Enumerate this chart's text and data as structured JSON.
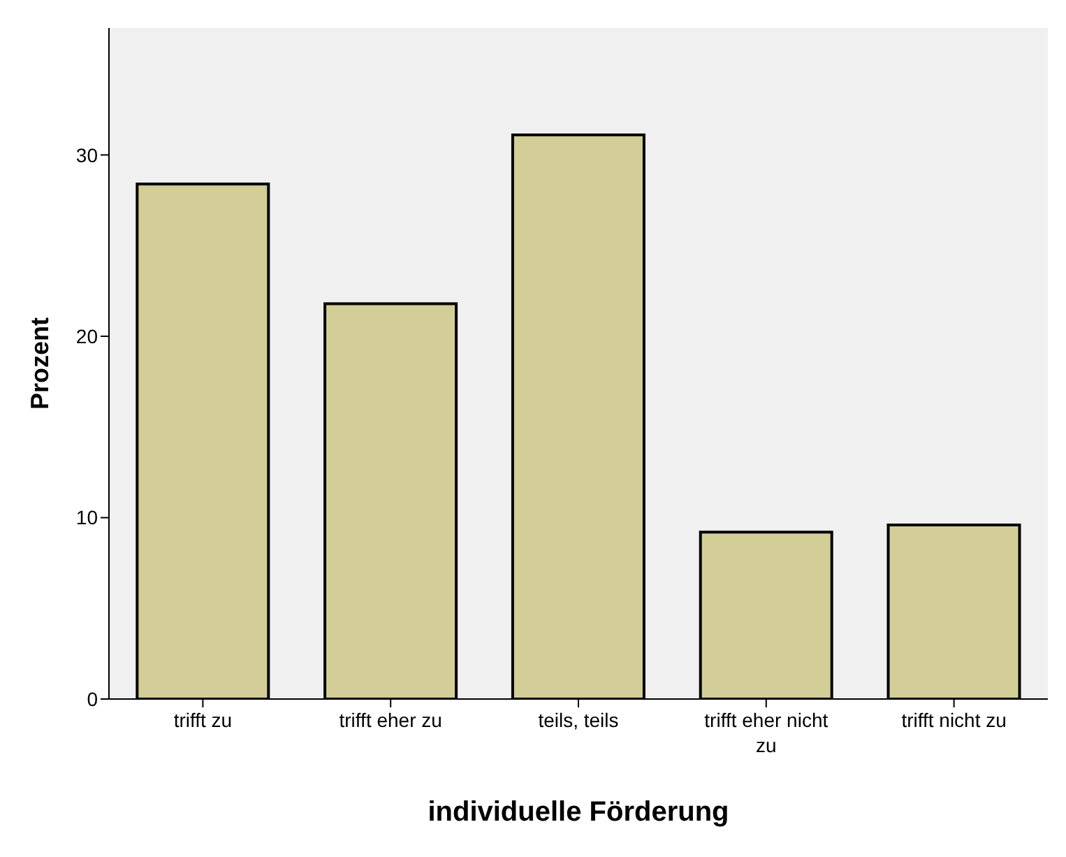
{
  "chart_data": {
    "type": "bar",
    "xlabel": "individuelle Förderung",
    "ylabel": "Prozent",
    "categories": [
      "trifft zu",
      "trifft eher zu",
      "teils, teils",
      "trifft eher nicht zu",
      "trifft nicht zu"
    ],
    "values": [
      28.4,
      21.8,
      31.1,
      9.2,
      9.6
    ],
    "color": "#d3ce97",
    "ylim": [
      0,
      37
    ],
    "yticks": [
      0,
      10,
      20,
      30
    ],
    "grid": false
  }
}
